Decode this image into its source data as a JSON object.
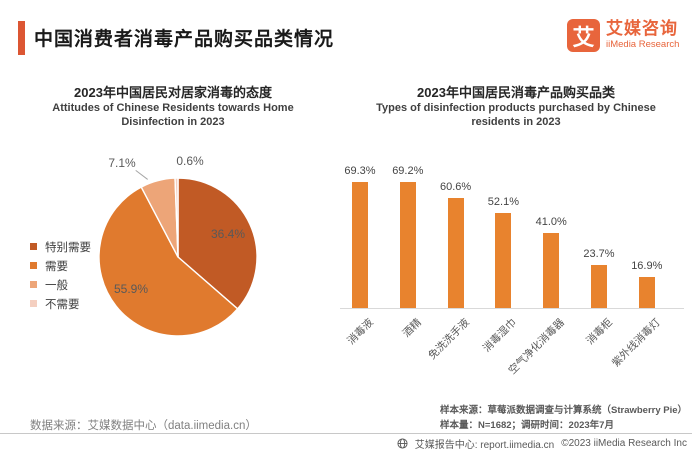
{
  "header": {
    "title": "中国消费者消毒产品购买品类情况",
    "logo": {
      "mark": "艾",
      "name_zh": "艾媒咨询",
      "name_en": "iiMedia Research"
    }
  },
  "colors": {
    "accent": "#DC5633",
    "logo_orange": "#E8653C",
    "axis_line": "#D9D9D9",
    "label_gray": "#595959"
  },
  "chart_data": [
    {
      "type": "pie",
      "title": "2023年中国居民对居家消毒的态度",
      "subtitle_lines": [
        "Attitudes of Chinese Residents towards Home",
        "Disinfection in 2023"
      ],
      "labels": [
        "特别需要",
        "需要",
        "一般",
        "不需要"
      ],
      "values": [
        36.4,
        55.9,
        7.1,
        0.6
      ],
      "unit": "%",
      "colors": [
        "#C15A25",
        "#E07A2E",
        "#EDA578",
        "#F4CFC0"
      ],
      "legend_position": "left",
      "start_angle_deg": 0,
      "direction": "clockwise"
    },
    {
      "type": "bar",
      "title": "2023年中国居民消毒产品购买品类",
      "subtitle_lines": [
        "Types of disinfection products purchased by Chinese",
        "residents in 2023"
      ],
      "categories": [
        "消毒液",
        "酒精",
        "免洗洗手液",
        "消毒湿巾",
        "空气净化消毒器",
        "消毒柜",
        "紫外线消毒灯"
      ],
      "values": [
        69.3,
        69.2,
        60.6,
        52.1,
        41.0,
        23.7,
        16.9
      ],
      "value_labels": [
        "69.3%",
        "69.2%",
        "60.6%",
        "52.1%",
        "41.0%",
        "23.7%",
        "16.9%"
      ],
      "unit": "%",
      "bar_color": "#E8832E",
      "ylim": [
        0,
        80
      ],
      "gridlines": false,
      "notes": [
        "样本来源：草莓派数据调查与计算系统（Strawberry Pie）",
        "样本量：N=1682；调研时间：2023年7月"
      ]
    }
  ],
  "footer": {
    "data_source": "数据来源：艾媒数据中心（data.iimedia.cn）",
    "report_center": "艾媒报告中心: report.iimedia.cn",
    "copyright": "©2023  iiMedia Research Inc"
  }
}
